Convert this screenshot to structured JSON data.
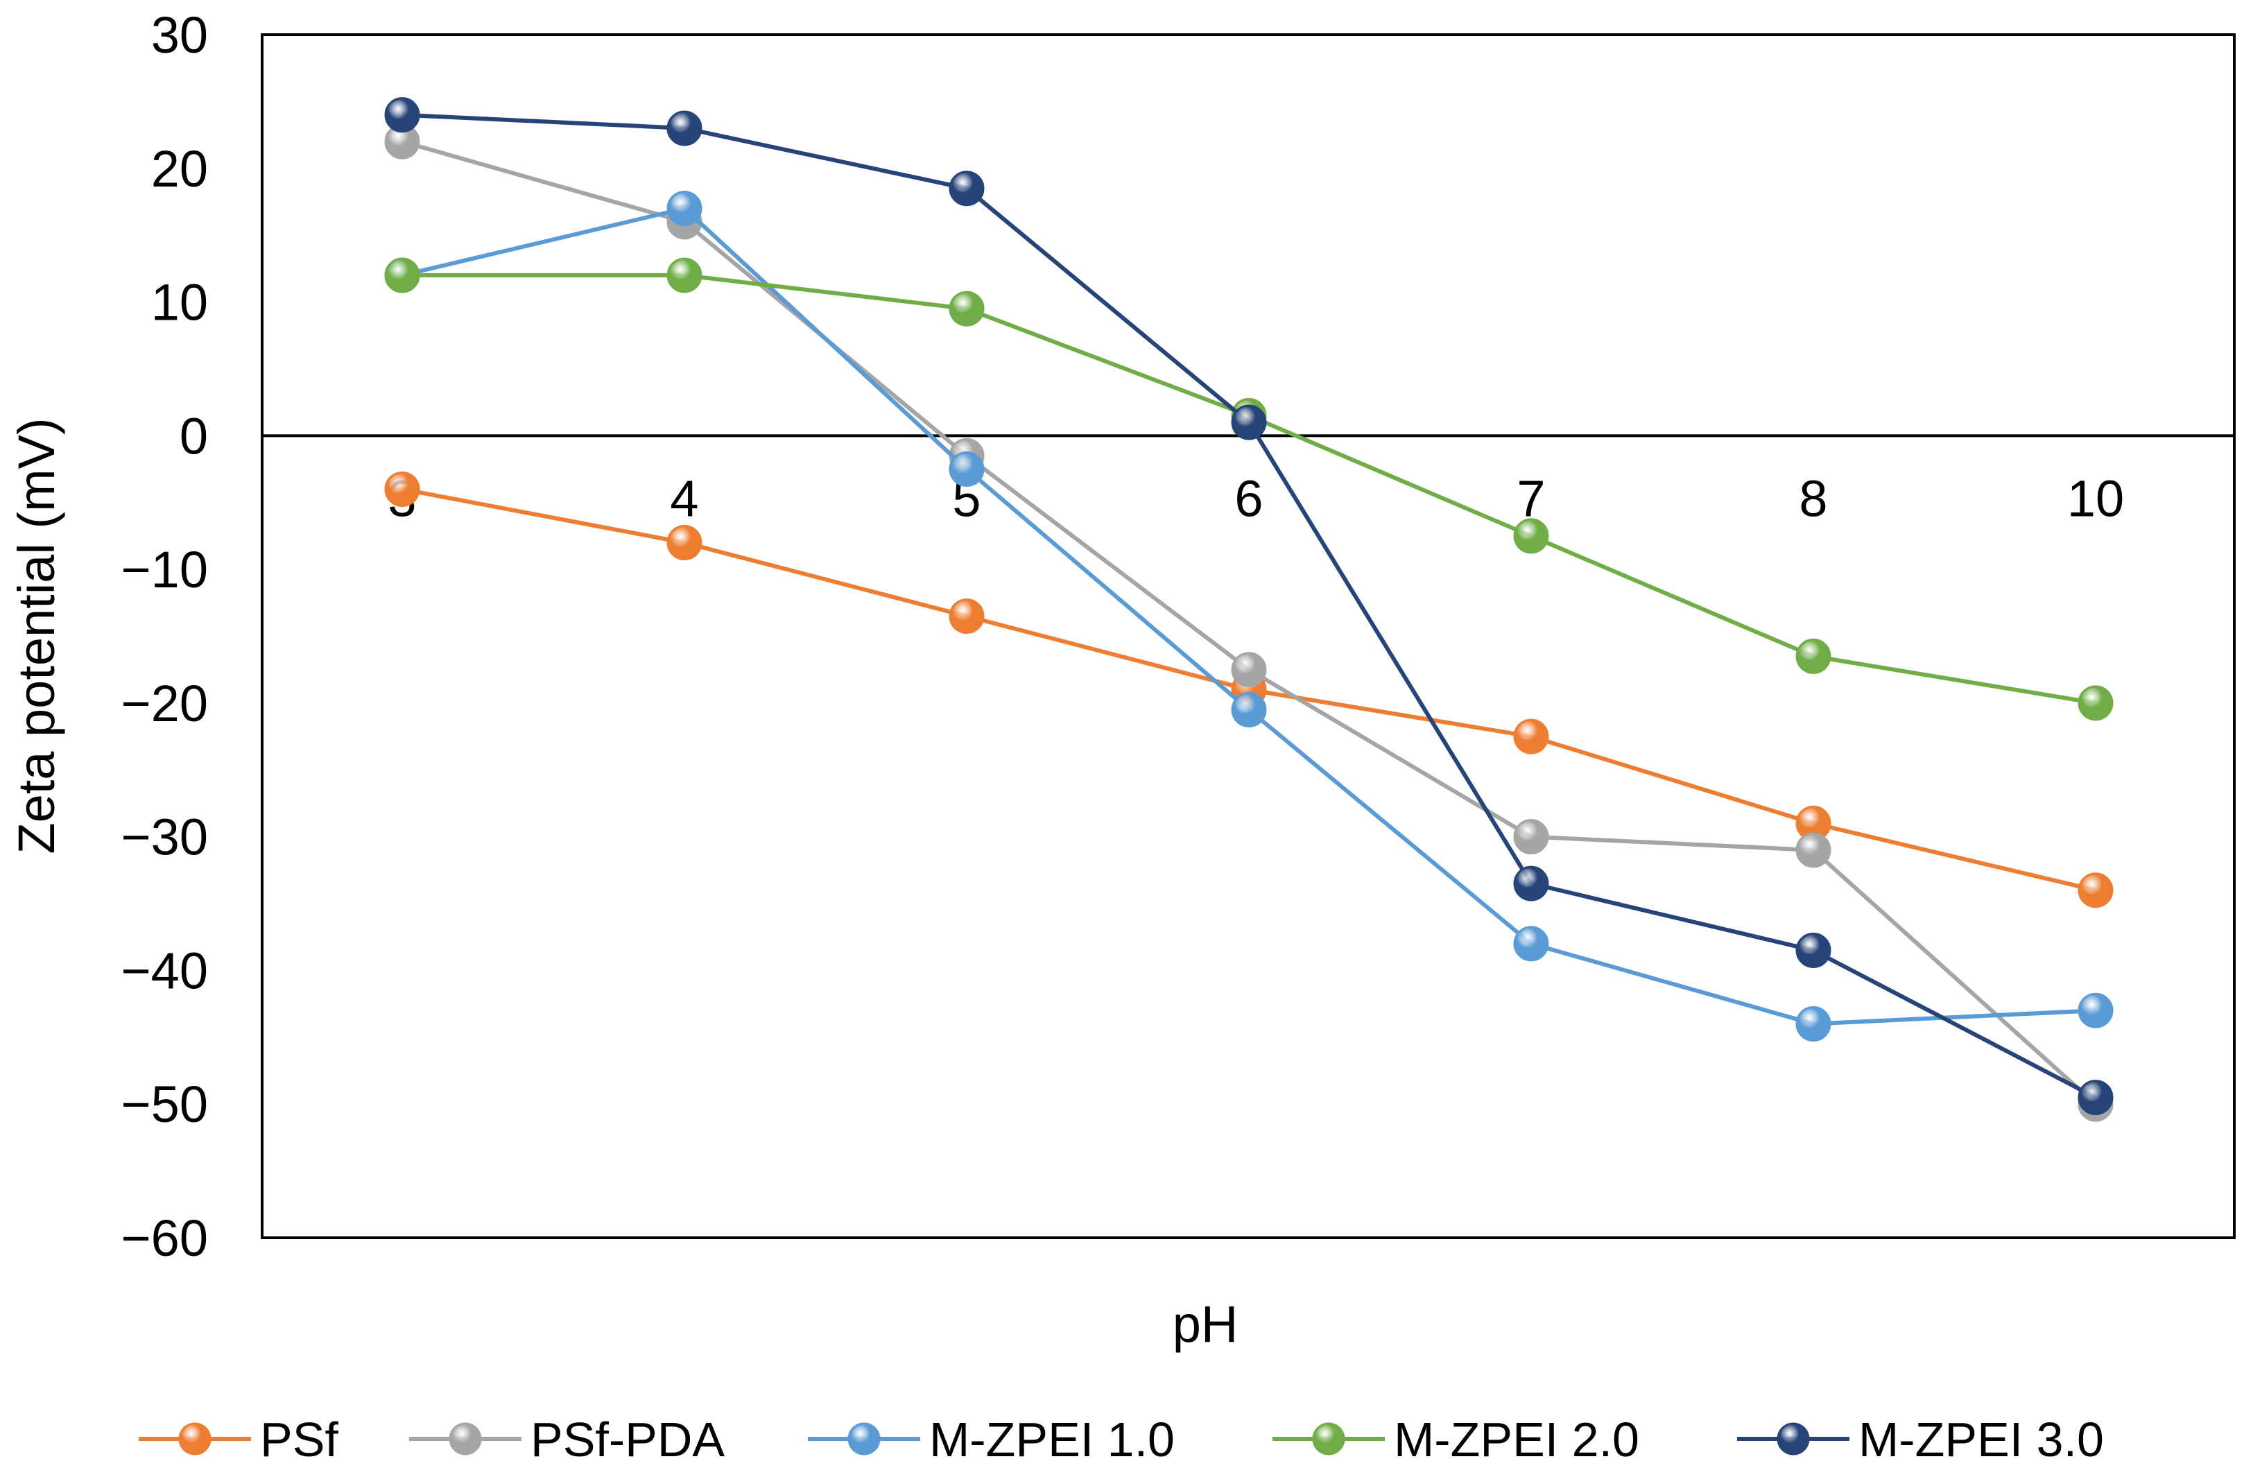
{
  "chart_data": {
    "type": "line",
    "title": "",
    "xlabel": "pH",
    "ylabel": "Zeta potential (mV)",
    "categories": [
      "3",
      "4",
      "5",
      "6",
      "7",
      "8",
      "10"
    ],
    "ylim": [
      -60,
      30
    ],
    "yticks": [
      30,
      20,
      10,
      0,
      -10,
      -20,
      -30,
      -40,
      -50,
      -60
    ],
    "ytick_labels": [
      "30",
      "20",
      "10",
      "0",
      "−10",
      "−20",
      "−30",
      "−40",
      "−50",
      "−60"
    ],
    "grid": false,
    "legend_position": "bottom",
    "series": [
      {
        "name": "PSf",
        "color": "#ED7D31",
        "values": [
          -4,
          -8,
          -13.5,
          -19,
          -22.5,
          -29,
          -34
        ]
      },
      {
        "name": "PSf-PDA",
        "color": "#A5A5A5",
        "values": [
          22,
          16,
          -1.5,
          -17.5,
          -30,
          -31,
          -50
        ]
      },
      {
        "name": "M-ZPEI 1.0",
        "color": "#5B9BD5",
        "values": [
          12,
          17,
          -2.5,
          -20.5,
          -38,
          -44,
          -43
        ]
      },
      {
        "name": "M-ZPEI 2.0",
        "color": "#70AD47",
        "values": [
          12,
          12,
          9.5,
          1.5,
          -7.5,
          -16.5,
          -20
        ]
      },
      {
        "name": "M-ZPEI 3.0",
        "color": "#264478",
        "values": [
          24,
          23,
          18.5,
          1,
          -33.5,
          -38.5,
          -49.5
        ]
      }
    ]
  }
}
